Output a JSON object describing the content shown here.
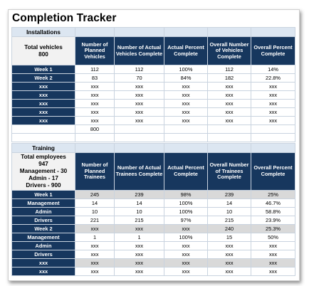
{
  "title": "Completion Tracker",
  "installations": {
    "section_label": "Installations",
    "info_label": "Total vehicles",
    "info_value": "800",
    "headers": [
      "Number of Planned Vehicles",
      "Number of Actual Vehicles Complete",
      "Actual Percent Complete",
      "Overall Number of Vehicles Complete",
      "Overall Percent Complete"
    ],
    "rows": [
      {
        "label": "Week 1",
        "values": [
          "112",
          "112",
          "100%",
          "112",
          "14%"
        ]
      },
      {
        "label": "Week 2",
        "values": [
          "83",
          "70",
          "84%",
          "182",
          "22.8%"
        ]
      },
      {
        "label": "xxx",
        "values": [
          "xxx",
          "xxx",
          "xxx",
          "xxx",
          "xxx"
        ]
      },
      {
        "label": "xxx",
        "values": [
          "xxx",
          "xxx",
          "xxx",
          "xxx",
          "xxx"
        ]
      },
      {
        "label": "xxx",
        "values": [
          "xxx",
          "xxx",
          "xxx",
          "xxx",
          "xxx"
        ]
      },
      {
        "label": "xxx",
        "values": [
          "xxx",
          "xxx",
          "xxx",
          "xxx",
          "xxx"
        ]
      },
      {
        "label": "xxx",
        "values": [
          "xxx",
          "xxx",
          "xxx",
          "xxx",
          "xxx"
        ]
      }
    ],
    "total_planned": "800"
  },
  "training": {
    "section_label": "Training",
    "info_lines": [
      "Total employees",
      "947",
      "Management - 30",
      "Admin - 17",
      "Drivers - 900"
    ],
    "headers": [
      "Number of Planned Trainees",
      "Number of Actual Trainees Complete",
      "Actual Percent Complete",
      "Overall Number of Trainees Complete",
      "Overall Percent Complete"
    ],
    "rows": [
      {
        "label": "Week 1",
        "values": [
          "245",
          "239",
          "98%",
          "239",
          "25%"
        ],
        "shaded": true
      },
      {
        "label": "Management",
        "values": [
          "14",
          "14",
          "100%",
          "14",
          "46.7%"
        ],
        "shaded": false
      },
      {
        "label": "Admin",
        "values": [
          "10",
          "10",
          "100%",
          "10",
          "58.8%"
        ],
        "shaded": false
      },
      {
        "label": "Drivers",
        "values": [
          "221",
          "215",
          "97%",
          "215",
          "23.9%"
        ],
        "shaded": false
      },
      {
        "label": "Week 2",
        "values": [
          "xxx",
          "xxx",
          "xxx",
          "240",
          "25.3%"
        ],
        "shaded": true
      },
      {
        "label": "Management",
        "values": [
          "1",
          "1",
          "100%",
          "15",
          "50%"
        ],
        "shaded": false
      },
      {
        "label": "Admin",
        "values": [
          "xxx",
          "xxx",
          "xxx",
          "xxx",
          "xxx"
        ],
        "shaded": false
      },
      {
        "label": "Drivers",
        "values": [
          "xxx",
          "xxx",
          "xxx",
          "xxx",
          "xxx"
        ],
        "shaded": false
      },
      {
        "label": "xxx",
        "values": [
          "xxx",
          "xxx",
          "xxx",
          "xxx",
          "xxx"
        ],
        "shaded": true
      },
      {
        "label": "xxx",
        "values": [
          "xxx",
          "xxx",
          "xxx",
          "xxx",
          "xxx"
        ],
        "shaded": false
      }
    ]
  }
}
